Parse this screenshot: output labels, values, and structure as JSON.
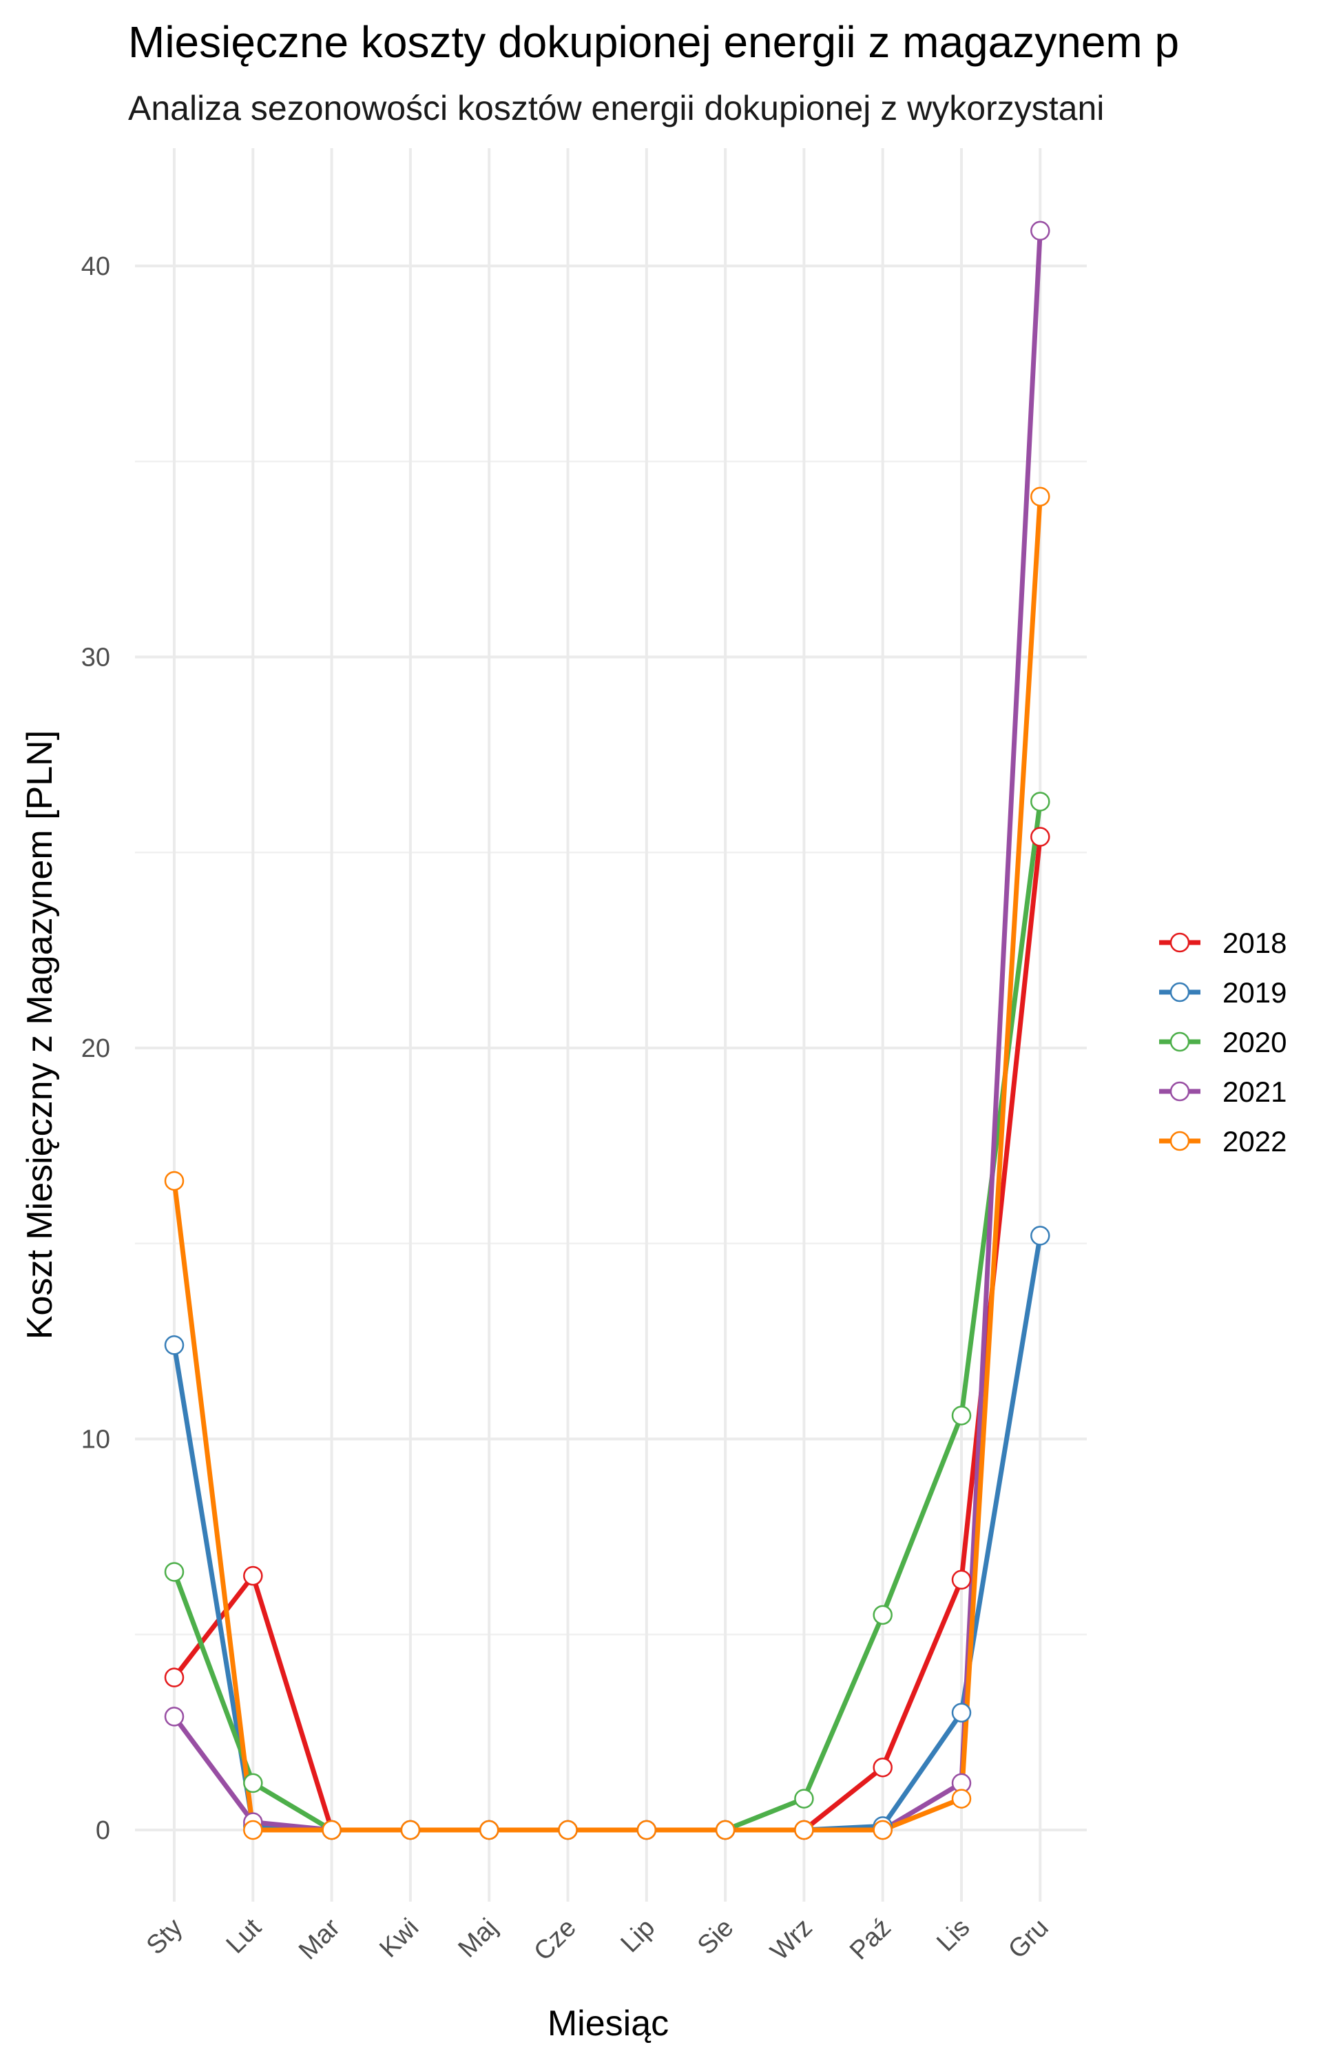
{
  "chart_data": {
    "type": "line",
    "title": "Miesięczne koszty dokupionej energii z magazynem p",
    "subtitle": "Analiza sezonowości kosztów energii dokupionej z wykorzystani",
    "xlabel": "Miesiąc",
    "ylabel": "Koszt Miesięczny z Magazynem [PLN]",
    "categories": [
      "Sty",
      "Lut",
      "Mar",
      "Kwi",
      "Maj",
      "Cze",
      "Lip",
      "Sie",
      "Wrz",
      "Paź",
      "Lis",
      "Gru"
    ],
    "ylim": [
      -2.2,
      42.6
    ],
    "yticks": [
      0,
      10,
      20,
      30,
      40
    ],
    "grid": true,
    "legend_position": "right",
    "series": [
      {
        "name": "2018",
        "color": "#E41A1C",
        "values": [
          3.9,
          6.5,
          0,
          0,
          0,
          0,
          0,
          0,
          0,
          1.6,
          6.4,
          25.4
        ]
      },
      {
        "name": "2019",
        "color": "#377EB8",
        "values": [
          12.4,
          0.1,
          0,
          0,
          0,
          0,
          0,
          0,
          0,
          0.1,
          3.0,
          15.2
        ]
      },
      {
        "name": "2020",
        "color": "#4DAF4A",
        "values": [
          6.6,
          1.2,
          0,
          0,
          0,
          0,
          0,
          0,
          0.8,
          5.5,
          10.6,
          26.3
        ]
      },
      {
        "name": "2021",
        "color": "#984EA3",
        "values": [
          2.9,
          0.2,
          0,
          0,
          0,
          0,
          0,
          0,
          0,
          0,
          1.2,
          40.9
        ]
      },
      {
        "name": "2022",
        "color": "#FF7F00",
        "values": [
          16.6,
          0,
          0,
          0,
          0,
          0,
          0,
          0,
          0,
          0,
          0.8,
          34.1
        ]
      }
    ]
  }
}
